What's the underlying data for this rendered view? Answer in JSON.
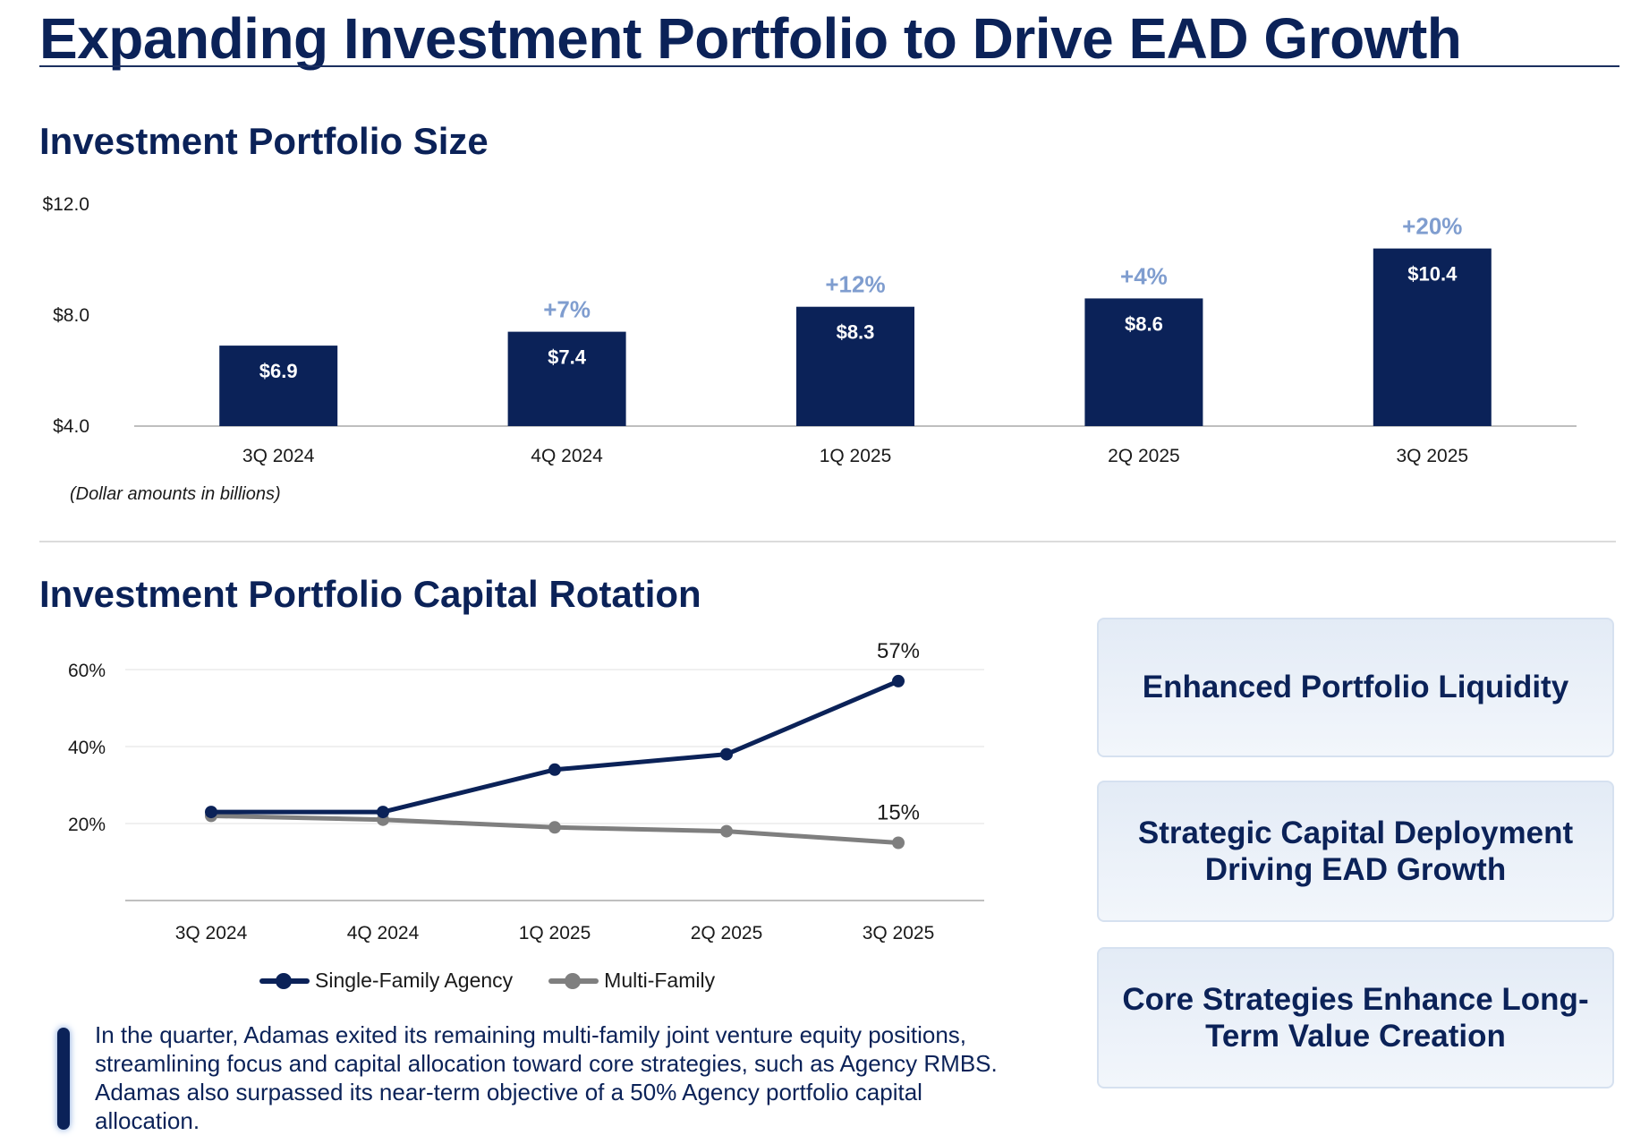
{
  "page": {
    "title": "Expanding Investment Portfolio to Drive EAD Growth",
    "bar_section_title": "Investment Portfolio Size",
    "line_section_title": "Investment Portfolio Capital Rotation",
    "note": "(Dollar amounts in billions)",
    "commentary": "In the quarter, Adamas exited its remaining multi-family joint venture equity positions, streamlining focus and capital allocation toward core strategies, such as Agency RMBS.  Adamas also surpassed its near-term objective of a 50% Agency portfolio capital allocation."
  },
  "callouts": [
    "Enhanced Portfolio Liquidity",
    "Strategic Capital Deployment Driving EAD Growth",
    "Core Strategies Enhance Long-Term Value Creation"
  ],
  "colors": {
    "navy": "#0b2258",
    "growth_label": "#7f9dcf",
    "multi_family": "#7f7f7f"
  },
  "chart_data": [
    {
      "type": "bar",
      "title": "Investment Portfolio Size",
      "categories": [
        "3Q 2024",
        "4Q 2024",
        "1Q 2025",
        "2Q 2025",
        "3Q 2025"
      ],
      "values": [
        6.9,
        7.4,
        8.3,
        8.6,
        10.4
      ],
      "value_labels": [
        "$6.9",
        "$7.4",
        "$8.3",
        "$8.6",
        "$10.4"
      ],
      "growth_labels": [
        "",
        "+7%",
        "+12%",
        "+4%",
        "+20%"
      ],
      "yticks": [
        4.0,
        8.0,
        12.0
      ],
      "ytick_labels": [
        "$4.0",
        "$8.0",
        "$12.0"
      ],
      "ylim": [
        4.0,
        12.0
      ],
      "grid": false
    },
    {
      "type": "line",
      "title": "Investment Portfolio Capital Rotation",
      "categories": [
        "3Q 2024",
        "4Q 2024",
        "1Q 2025",
        "2Q 2025",
        "3Q 2025"
      ],
      "yticks": [
        20,
        40,
        60
      ],
      "ytick_labels": [
        "20%",
        "40%",
        "60%"
      ],
      "ylim": [
        0,
        70
      ],
      "grid": true,
      "legend_position": "bottom",
      "series": [
        {
          "name": "Single-Family Agency",
          "values": [
            23,
            23,
            34,
            38,
            57
          ],
          "end_label": "57%",
          "color": "#0b2258"
        },
        {
          "name": "Multi-Family",
          "values": [
            22,
            21,
            19,
            18,
            15
          ],
          "end_label": "15%",
          "color": "#7f7f7f"
        }
      ]
    }
  ]
}
